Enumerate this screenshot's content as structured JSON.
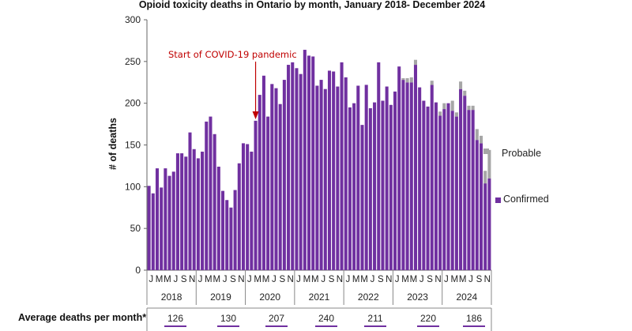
{
  "chart_data": {
    "type": "bar",
    "stacked": true,
    "title": "Opioid toxicity deaths in Ontario by month, January 2018- December 2024",
    "ylabel": "# of deaths",
    "ylim": [
      0,
      300
    ],
    "yticks": [
      0,
      50,
      100,
      150,
      200,
      250,
      300
    ],
    "grid": false,
    "legend_position": "right",
    "month_labels": [
      "J",
      "M",
      "M",
      "J",
      "S",
      "N"
    ],
    "years": [
      "2018",
      "2019",
      "2020",
      "2021",
      "2022",
      "2023",
      "2024"
    ],
    "series": [
      {
        "name": "Confirmed",
        "color": "#7030a0",
        "values": [
          101,
          92,
          122,
          99,
          122,
          113,
          118,
          140,
          140,
          136,
          165,
          145,
          134,
          142,
          178,
          184,
          163,
          124,
          95,
          84,
          75,
          96,
          128,
          152,
          151,
          142,
          179,
          210,
          233,
          184,
          223,
          218,
          199,
          228,
          246,
          249,
          242,
          235,
          264,
          257,
          256,
          221,
          228,
          217,
          239,
          238,
          220,
          249,
          231,
          195,
          200,
          221,
          174,
          222,
          194,
          201,
          249,
          203,
          220,
          198,
          214,
          244,
          228,
          225,
          225,
          246,
          219,
          203,
          196,
          222,
          201,
          185,
          193,
          200,
          191,
          184,
          217,
          209,
          192,
          192,
          156,
          152,
          104,
          110
        ]
      },
      {
        "name": "Probable",
        "color": "#a6a6a6",
        "values": [
          0,
          0,
          0,
          0,
          0,
          0,
          0,
          0,
          0,
          0,
          0,
          0,
          0,
          0,
          0,
          0,
          0,
          0,
          0,
          0,
          0,
          0,
          0,
          0,
          0,
          0,
          0,
          0,
          0,
          0,
          0,
          0,
          0,
          0,
          0,
          0,
          0,
          0,
          0,
          0,
          0,
          0,
          0,
          0,
          0,
          0,
          0,
          0,
          0,
          0,
          0,
          0,
          0,
          0,
          0,
          0,
          0,
          0,
          0,
          0,
          0,
          0,
          2,
          5,
          6,
          6,
          0,
          0,
          0,
          5,
          0,
          5,
          7,
          0,
          12,
          5,
          9,
          6,
          5,
          5,
          13,
          9,
          15,
          34
        ]
      }
    ],
    "annotation": {
      "text": "Start of COVID-19 pandemic",
      "bar_index": 26
    },
    "average_deaths": {
      "label": "Average deaths per month*",
      "values": [
        "126",
        "130",
        "207",
        "240",
        "211",
        "220",
        "186"
      ]
    }
  }
}
